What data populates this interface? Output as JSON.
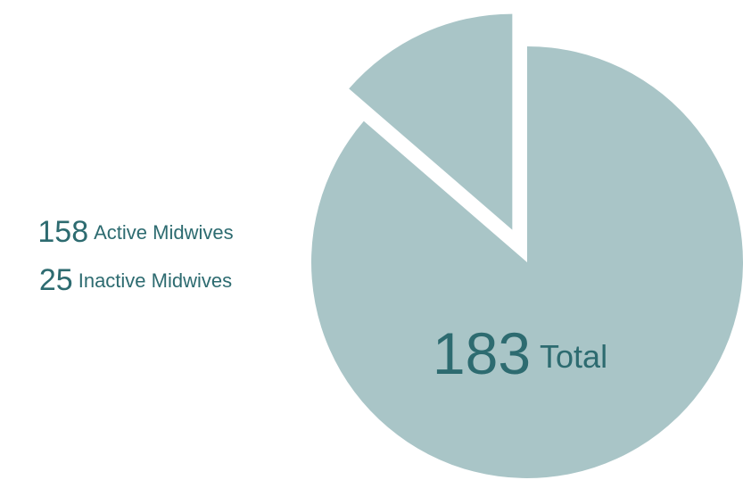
{
  "chart_data": {
    "type": "pie",
    "categories": [
      "Active Midwives",
      "Inactive Midwives"
    ],
    "values": [
      158,
      25
    ],
    "colors": [
      "#a9c5c7",
      "#a9c5c7"
    ],
    "total": 183,
    "total_label": "Total"
  }
}
